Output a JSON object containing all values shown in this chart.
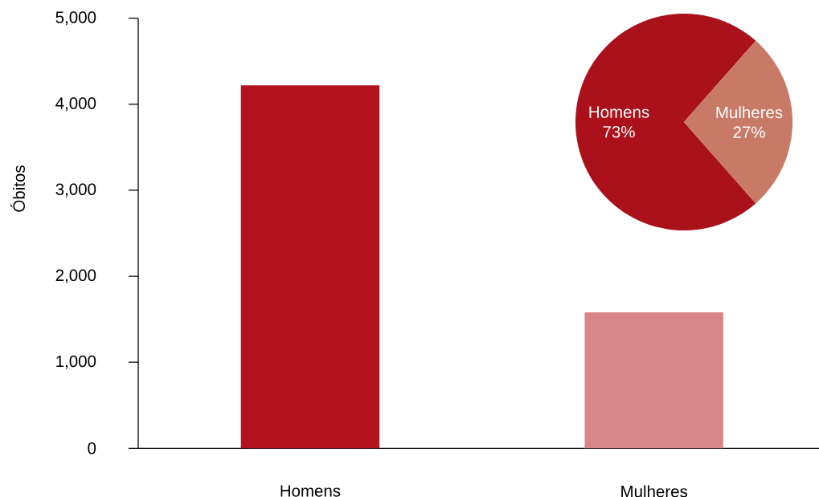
{
  "chart_data": [
    {
      "type": "bar",
      "categories": [
        "Homens",
        "Mulheres"
      ],
      "values": [
        4220,
        1580
      ],
      "colors": [
        "#b2131e",
        "#d9868b"
      ],
      "ylabel": "Óbitos",
      "ylim": [
        0,
        5000
      ],
      "yticks": [
        0,
        {
          "value": 1000,
          "label": "1,000"
        },
        {
          "value": 2000,
          "label": "2,000"
        },
        {
          "value": 3000,
          "label": "3,000"
        },
        {
          "value": 4000,
          "label": "4,000"
        },
        {
          "value": 5000,
          "label": "5,000"
        }
      ]
    },
    {
      "type": "pie",
      "categories": [
        "Homens",
        "Mulheres"
      ],
      "values": [
        73,
        27
      ],
      "colors": [
        "#ab111b",
        "#c87a66"
      ],
      "value_labels": [
        "73%",
        "27%"
      ]
    }
  ]
}
